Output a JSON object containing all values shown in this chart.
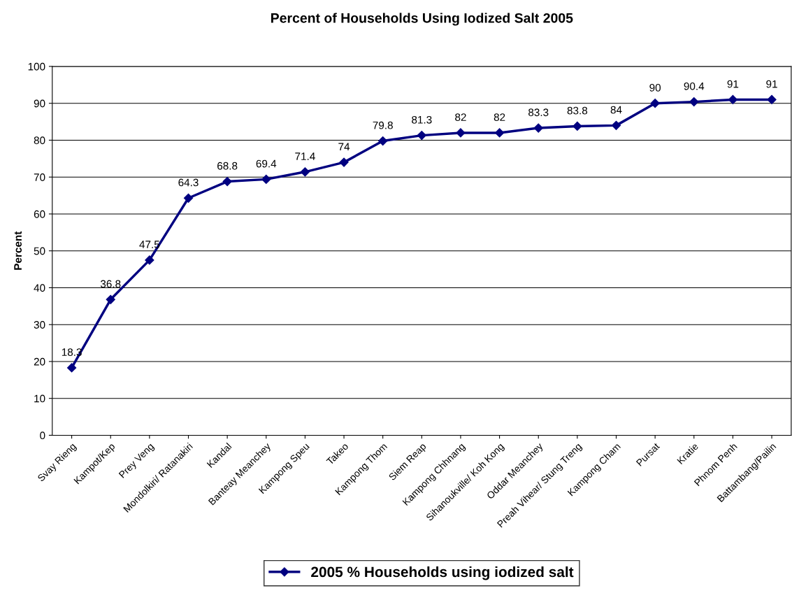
{
  "chart_data": {
    "type": "line",
    "title": "Percent of Households Using Iodized Salt 2005",
    "ylabel": "Percent",
    "categories": [
      "Svay Rieng",
      "Kampot/Kep",
      "Prey Veng",
      "Mondolkiri/ Ratanakiri",
      "Kandal",
      "Banteay Meanchey",
      "Kampong Speu",
      "Takeo",
      "Kampong Thom",
      "Siem Reap",
      "Kampong Chhnang",
      "Sihanoukville/ Koh Kong",
      "Oddar Meanchey",
      "Preah Vihear/ Stung Treng",
      "Kampong Cham",
      "Pursat",
      "Kratie",
      "Phnom Penh",
      "Battambang/Pailin"
    ],
    "series": [
      {
        "name": "2005 % Households using iodized salt",
        "color": "#000080",
        "values": [
          18.3,
          36.8,
          47.5,
          64.3,
          68.8,
          69.4,
          71.4,
          74,
          79.8,
          81.3,
          82,
          82,
          83.3,
          83.8,
          84,
          90,
          90.4,
          91,
          91
        ]
      }
    ],
    "ylim": [
      0,
      100
    ],
    "yticks": [
      0,
      10,
      20,
      30,
      40,
      50,
      60,
      70,
      80,
      90,
      100
    ],
    "grid": "y",
    "legend": "bottom",
    "marker": "diamond",
    "line_style": "solid",
    "data_labels": true
  }
}
